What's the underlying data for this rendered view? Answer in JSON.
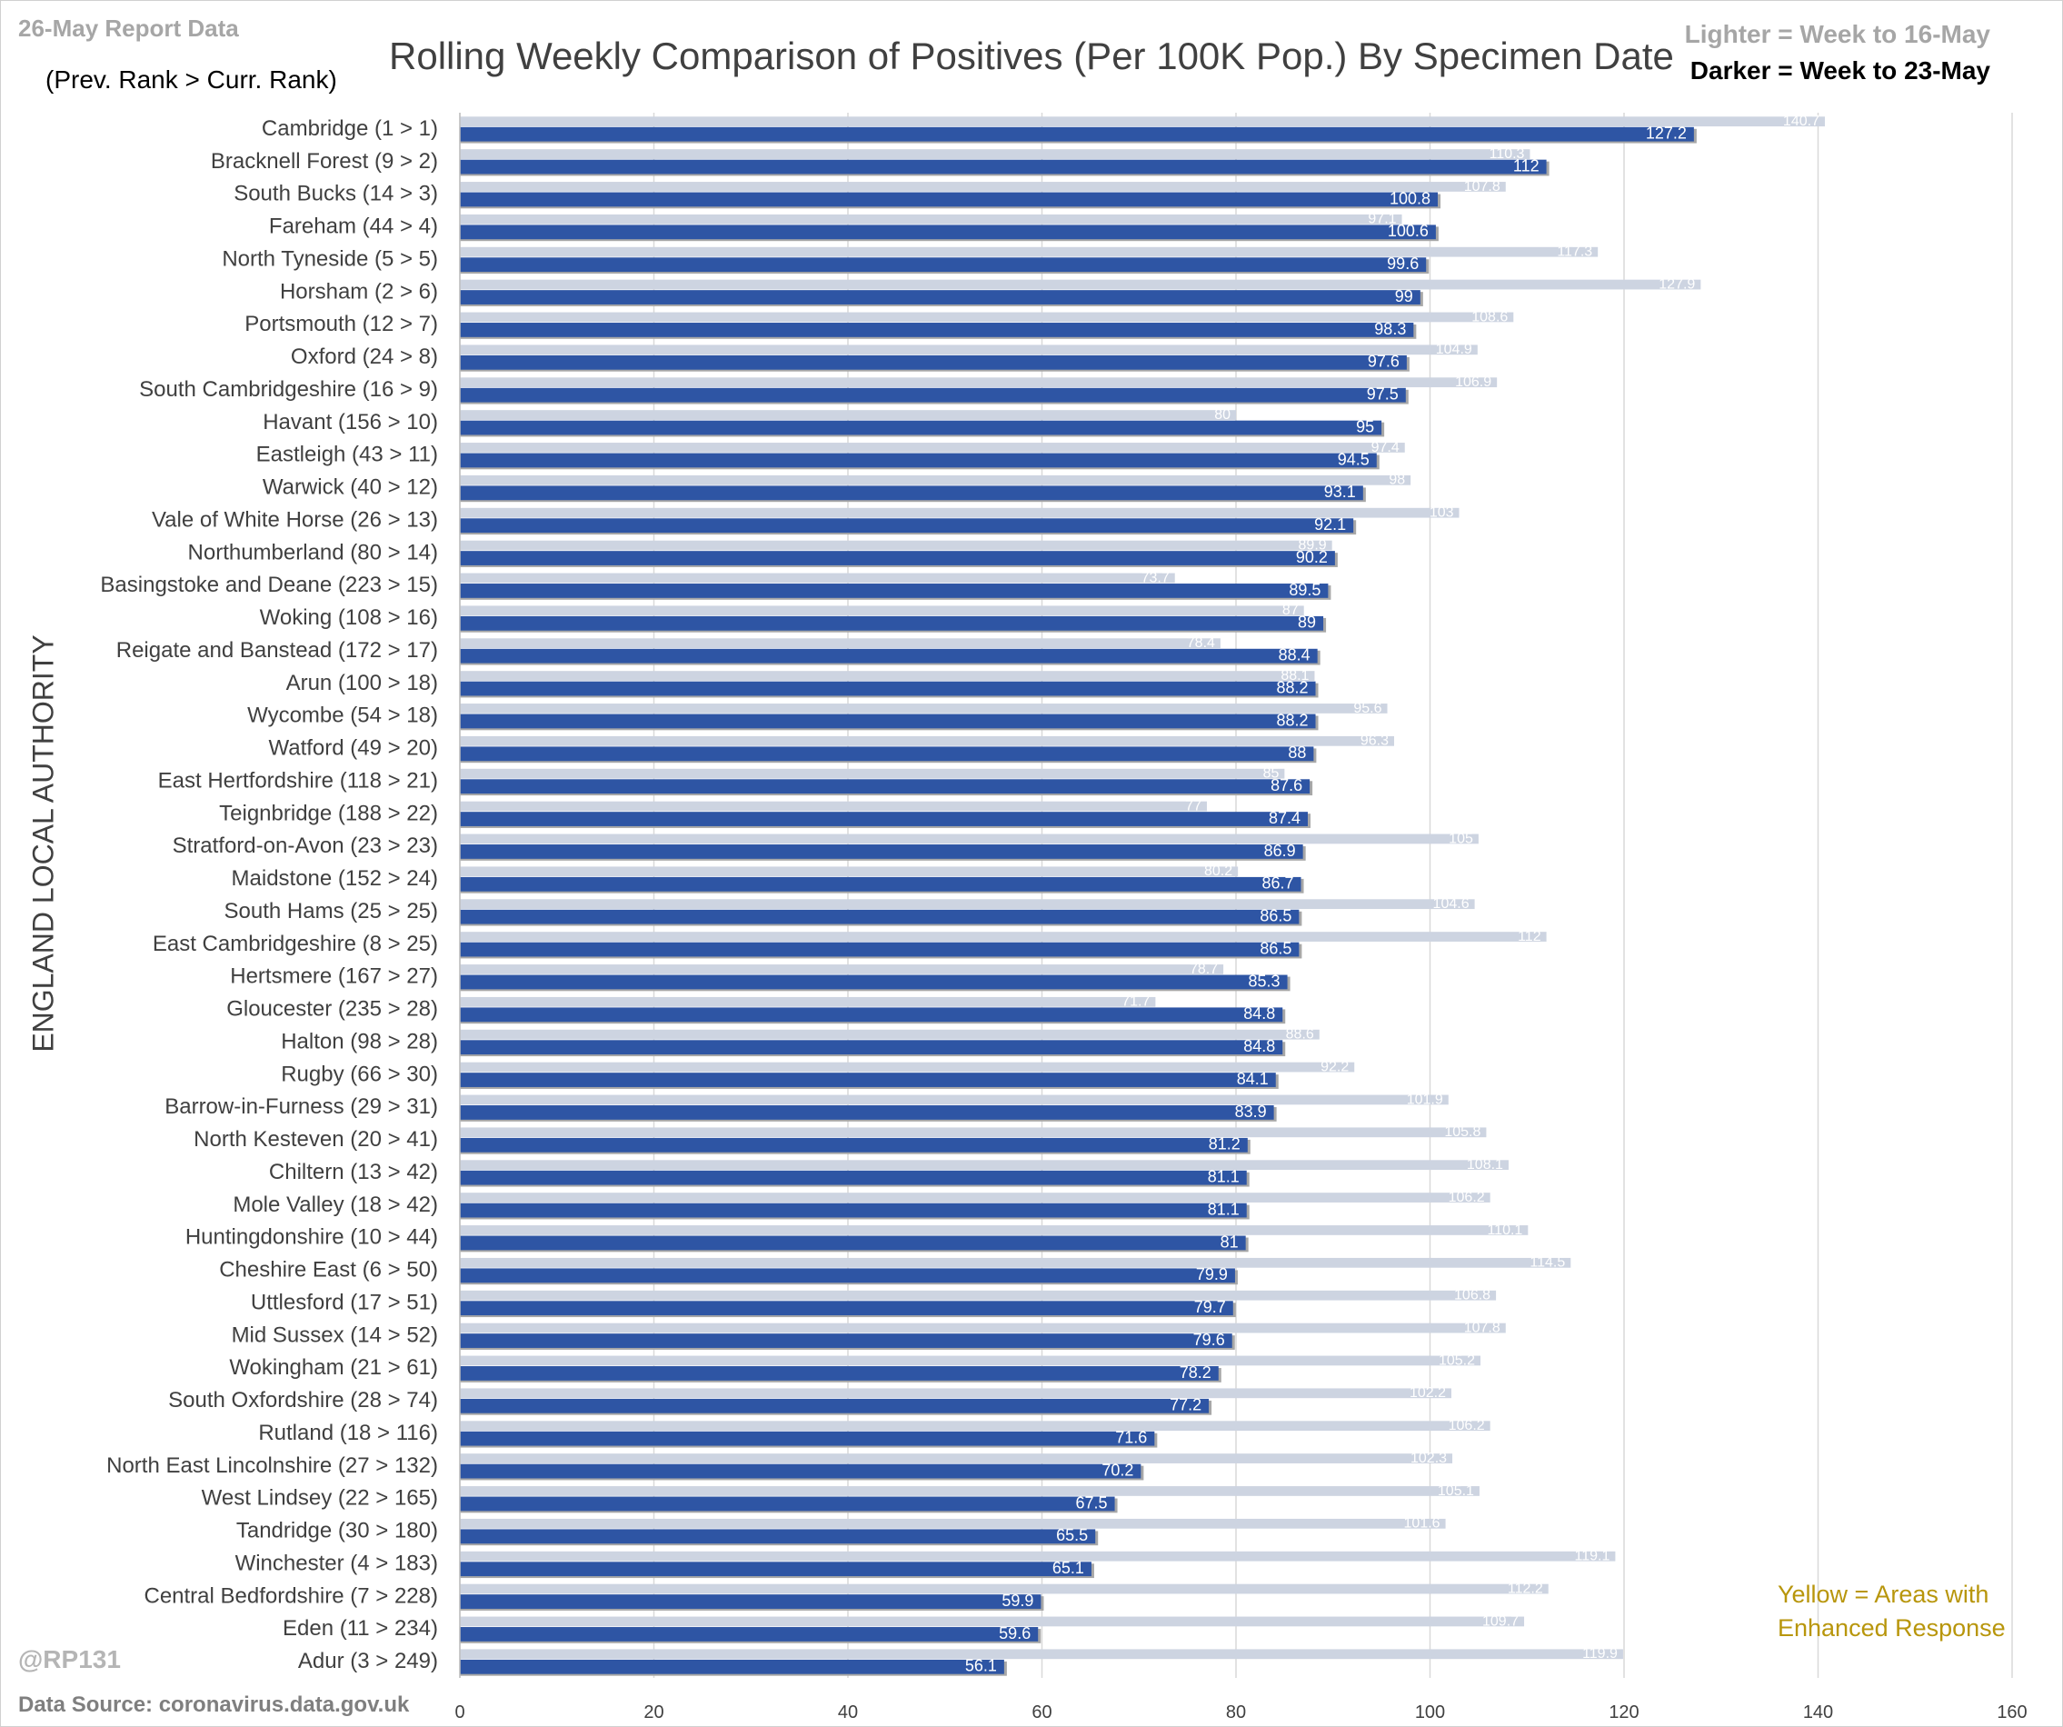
{
  "header": {
    "report_date": "26-May Report Data",
    "rank_note": "(Prev. Rank > Curr. Rank)",
    "title": "Rolling Weekly Comparison of Positives  (Per 100K Pop.) By Specimen Date",
    "legend_light": "Lighter =  Week to 16-May",
    "legend_dark": "Darker =  Week to 23-May"
  },
  "footer": {
    "handle": "@RP131",
    "source": "Data Source: coronavirus.data.gov.uk",
    "yellow_note": "Yellow = Areas with\nEnhanced Response"
  },
  "colors": {
    "light_bar": "#cdd4e1",
    "dark_bar": "#2e55a4",
    "grid": "#d9d9d9"
  },
  "chart_data": {
    "type": "bar",
    "orientation": "horizontal",
    "ylabel": "ENGLAND LOCAL AUTHORITY",
    "xlim": [
      0,
      160
    ],
    "xticks": [
      0,
      20,
      40,
      60,
      80,
      100,
      120,
      140,
      160
    ],
    "grid": "vertical",
    "legend_placement": "top-right",
    "categories": [
      "Cambridge (1 > 1)",
      "Bracknell Forest (9 > 2)",
      "South Bucks (14 > 3)",
      "Fareham (44 > 4)",
      "North Tyneside (5 > 5)",
      "Horsham (2 > 6)",
      "Portsmouth (12 > 7)",
      "Oxford (24 > 8)",
      "South Cambridgeshire (16 > 9)",
      "Havant (156 > 10)",
      "Eastleigh (43 > 11)",
      "Warwick (40 > 12)",
      "Vale of White Horse (26 > 13)",
      "Northumberland (80 > 14)",
      "Basingstoke and Deane (223 > 15)",
      "Woking (108 > 16)",
      "Reigate and Banstead (172 > 17)",
      "Arun (100 > 18)",
      "Wycombe (54 > 18)",
      "Watford (49 > 20)",
      "East Hertfordshire (118 > 21)",
      "Teignbridge (188 > 22)",
      "Stratford-on-Avon (23 > 23)",
      "Maidstone (152 > 24)",
      "South Hams (25 > 25)",
      "East Cambridgeshire (8 > 25)",
      "Hertsmere (167 > 27)",
      "Gloucester (235 > 28)",
      "Halton (98 > 28)",
      "Rugby (66 > 30)",
      "Barrow-in-Furness (29 > 31)",
      "North Kesteven (20 > 41)",
      "Chiltern (13 > 42)",
      "Mole Valley (18 > 42)",
      "Huntingdonshire (10 > 44)",
      "Cheshire East (6 > 50)",
      "Uttlesford (17 > 51)",
      "Mid Sussex (14 > 52)",
      "Wokingham (21 > 61)",
      "South Oxfordshire (28 > 74)",
      "Rutland (18 > 116)",
      "North East Lincolnshire (27 > 132)",
      "West Lindsey (22 > 165)",
      "Tandridge (30 > 180)",
      "Winchester (4 > 183)",
      "Central Bedfordshire (7 > 228)",
      "Eden (11 > 234)",
      "Adur (3 > 249)"
    ],
    "series": [
      {
        "name": "Week to 16-May",
        "values": [
          140.7,
          110.3,
          107.8,
          97.1,
          117.3,
          127.9,
          108.6,
          104.9,
          106.9,
          80,
          97.4,
          98,
          103,
          89.9,
          73.7,
          87,
          78.4,
          88.1,
          95.6,
          96.3,
          85,
          77,
          105,
          80.2,
          104.6,
          112,
          78.7,
          71.7,
          88.6,
          92.2,
          101.9,
          105.8,
          108.1,
          106.2,
          110.1,
          114.5,
          106.8,
          107.8,
          105.2,
          102.2,
          106.2,
          102.3,
          105.1,
          101.6,
          119.1,
          112.2,
          109.7,
          119.9
        ]
      },
      {
        "name": "Week to 23-May",
        "values": [
          127.2,
          112,
          100.8,
          100.6,
          99.6,
          99,
          98.3,
          97.6,
          97.5,
          95,
          94.5,
          93.1,
          92.1,
          90.2,
          89.5,
          89,
          88.4,
          88.2,
          88.2,
          88,
          87.6,
          87.4,
          86.9,
          86.7,
          86.5,
          86.5,
          85.3,
          84.8,
          84.8,
          84.1,
          83.9,
          81.2,
          81.1,
          81.1,
          81,
          79.9,
          79.7,
          79.6,
          78.2,
          77.2,
          71.6,
          70.2,
          67.5,
          65.5,
          65.1,
          59.9,
          59.6,
          56.1
        ]
      }
    ]
  }
}
